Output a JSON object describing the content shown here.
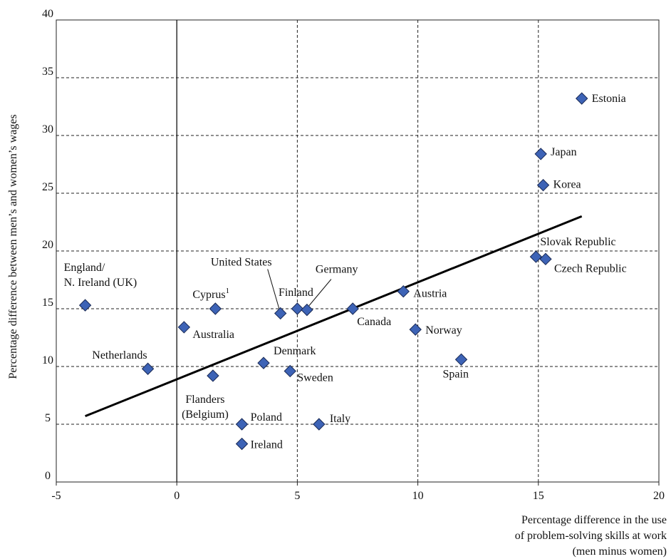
{
  "chart_data": {
    "type": "scatter",
    "xlabel": [
      "Percentage difference in the use",
      "of problem-solving skills at work",
      "(men minus women)"
    ],
    "ylabel": "Percentage difference between men’s and women’s wages",
    "xlim": [
      -5,
      20
    ],
    "ylim": [
      0,
      40
    ],
    "xticks": [
      -5,
      0,
      5,
      10,
      15,
      20
    ],
    "yticks": [
      0,
      5,
      10,
      15,
      20,
      25,
      30,
      35,
      40
    ],
    "grid": "dashed at x = 5, 10, 15 and y = 5 to 35; solid line at x = 0",
    "marker_color": "#3d63b6",
    "points": [
      {
        "label": "England/\nN. Ireland (UK)",
        "x": -3.8,
        "y": 15.3
      },
      {
        "label": "Netherlands",
        "x": -1.2,
        "y": 9.8
      },
      {
        "label": "Australia",
        "x": 0.3,
        "y": 13.4
      },
      {
        "label": "Flanders\n(Belgium)",
        "x": 1.5,
        "y": 9.2
      },
      {
        "label": "Cyprus",
        "label_sup": "1",
        "x": 1.6,
        "y": 15.0
      },
      {
        "label": "Poland",
        "x": 2.7,
        "y": 5.0
      },
      {
        "label": "Ireland",
        "x": 2.7,
        "y": 3.3
      },
      {
        "label": "Denmark",
        "x": 3.6,
        "y": 10.3
      },
      {
        "label": "United States",
        "x": 4.3,
        "y": 14.6
      },
      {
        "label": "Sweden",
        "x": 4.7,
        "y": 9.6
      },
      {
        "label": "Finland",
        "x": 5.0,
        "y": 15.0
      },
      {
        "label": "Germany",
        "x": 5.4,
        "y": 14.9
      },
      {
        "label": "Italy",
        "x": 5.9,
        "y": 5.0
      },
      {
        "label": "Canada",
        "x": 7.3,
        "y": 15.0
      },
      {
        "label": "Austria",
        "x": 9.4,
        "y": 16.5
      },
      {
        "label": "Norway",
        "x": 9.9,
        "y": 13.2
      },
      {
        "label": "Spain",
        "x": 11.8,
        "y": 10.6
      },
      {
        "label": "Slovak Republic",
        "x": 14.9,
        "y": 19.5
      },
      {
        "label": "Czech Republic",
        "x": 15.3,
        "y": 19.3
      },
      {
        "label": "Japan",
        "x": 15.1,
        "y": 28.4
      },
      {
        "label": "Korea",
        "x": 15.2,
        "y": 25.7
      },
      {
        "label": "Estonia",
        "x": 16.8,
        "y": 33.2
      }
    ],
    "trendline": {
      "x": [
        -3.8,
        16.8
      ],
      "y": [
        5.7,
        23.0
      ]
    }
  }
}
